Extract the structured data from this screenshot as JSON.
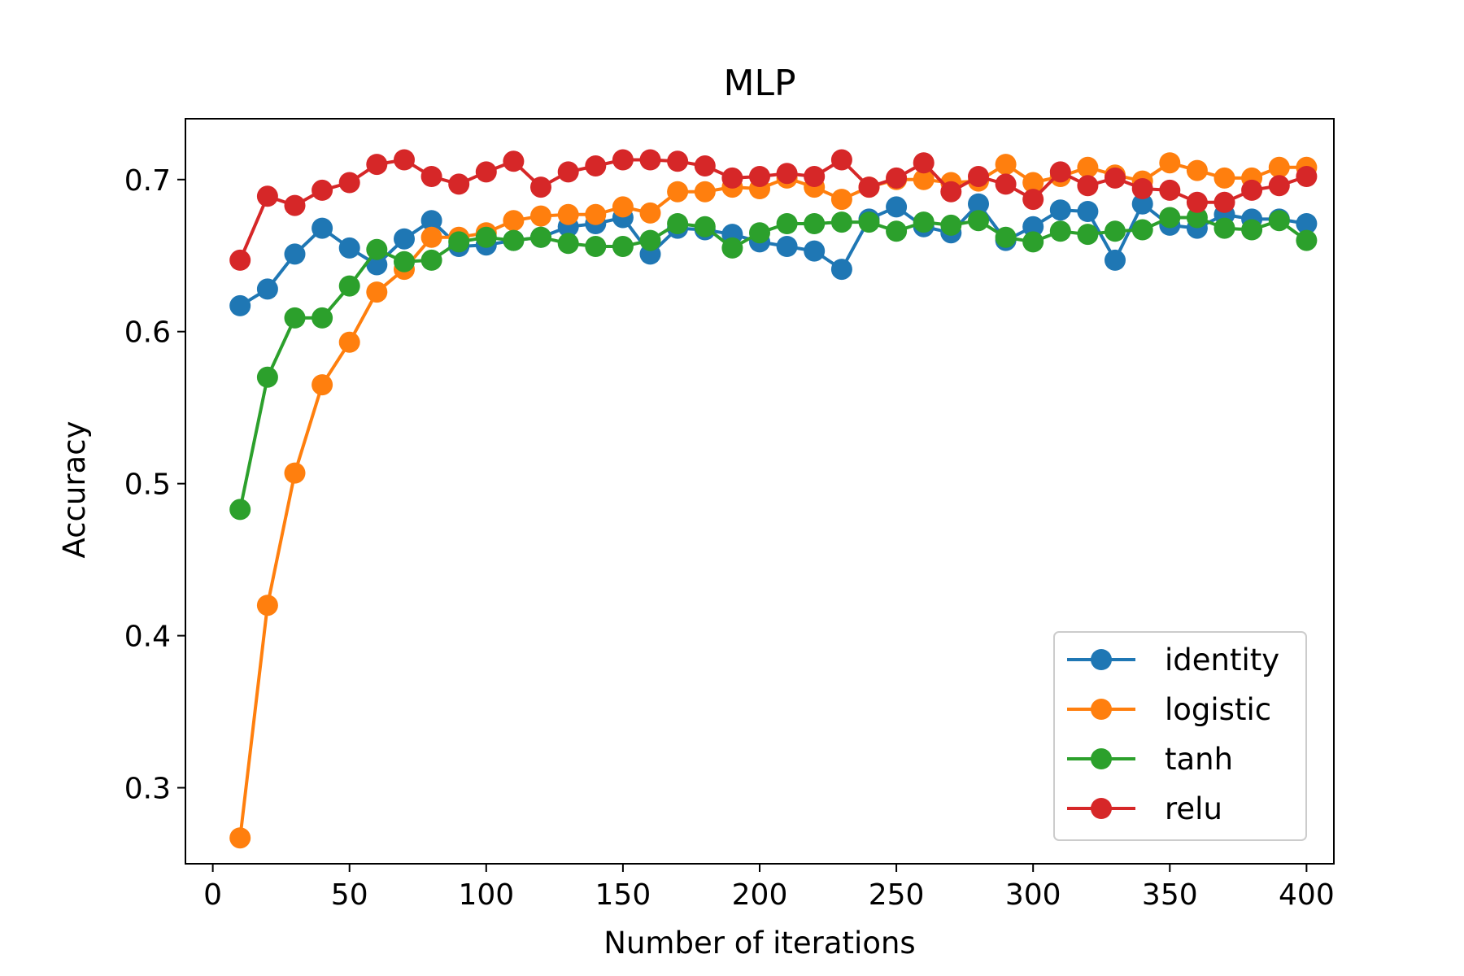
{
  "chart_data": {
    "type": "line",
    "title": "MLP",
    "xlabel": "Number of iterations",
    "ylabel": "Accuracy",
    "xlim": [
      -10,
      410
    ],
    "ylim": [
      0.25,
      0.74
    ],
    "xticks": [
      0,
      50,
      100,
      150,
      200,
      250,
      300,
      350,
      400
    ],
    "yticks": [
      0.3,
      0.4,
      0.5,
      0.6,
      0.7
    ],
    "ytick_labels": [
      "0.3",
      "0.4",
      "0.5",
      "0.6",
      "0.7"
    ],
    "grid": false,
    "legend_position": "lower-right",
    "x": [
      10,
      20,
      30,
      40,
      50,
      60,
      70,
      80,
      90,
      100,
      110,
      120,
      130,
      140,
      150,
      160,
      170,
      180,
      190,
      200,
      210,
      220,
      230,
      240,
      250,
      260,
      270,
      280,
      290,
      300,
      310,
      320,
      330,
      340,
      350,
      360,
      370,
      380,
      390,
      400
    ],
    "series": [
      {
        "name": "identity",
        "color": "#1f77b4",
        "values": [
          0.617,
          0.628,
          0.651,
          0.668,
          0.655,
          0.644,
          0.661,
          0.673,
          0.656,
          0.657,
          0.66,
          0.662,
          0.669,
          0.671,
          0.675,
          0.651,
          0.668,
          0.667,
          0.664,
          0.659,
          0.656,
          0.653,
          0.641,
          0.674,
          0.682,
          0.669,
          0.665,
          0.684,
          0.66,
          0.669,
          0.68,
          0.679,
          0.647,
          0.684,
          0.67,
          0.668,
          0.677,
          0.674,
          0.674,
          0.671
        ]
      },
      {
        "name": "logistic",
        "color": "#ff7f0e",
        "values": [
          0.267,
          0.42,
          0.507,
          0.565,
          0.593,
          0.626,
          0.641,
          0.662,
          0.662,
          0.665,
          0.673,
          0.676,
          0.677,
          0.677,
          0.682,
          0.678,
          0.692,
          0.692,
          0.695,
          0.694,
          0.701,
          0.695,
          0.687,
          0.695,
          0.7,
          0.7,
          0.698,
          0.699,
          0.71,
          0.698,
          0.702,
          0.708,
          0.703,
          0.699,
          0.711,
          0.706,
          0.701,
          0.701,
          0.708,
          0.708
        ]
      },
      {
        "name": "tanh",
        "color": "#2ca02c",
        "values": [
          0.483,
          0.57,
          0.609,
          0.609,
          0.63,
          0.654,
          0.646,
          0.647,
          0.659,
          0.662,
          0.66,
          0.662,
          0.658,
          0.656,
          0.656,
          0.66,
          0.671,
          0.669,
          0.655,
          0.665,
          0.671,
          0.671,
          0.672,
          0.672,
          0.666,
          0.672,
          0.67,
          0.673,
          0.662,
          0.659,
          0.666,
          0.664,
          0.666,
          0.667,
          0.675,
          0.675,
          0.668,
          0.667,
          0.673,
          0.66
        ]
      },
      {
        "name": "relu",
        "color": "#d62728",
        "values": [
          0.647,
          0.689,
          0.683,
          0.693,
          0.698,
          0.71,
          0.713,
          0.702,
          0.697,
          0.705,
          0.712,
          0.695,
          0.705,
          0.709,
          0.713,
          0.713,
          0.712,
          0.709,
          0.701,
          0.702,
          0.704,
          0.702,
          0.713,
          0.695,
          0.701,
          0.711,
          0.692,
          0.702,
          0.697,
          0.687,
          0.705,
          0.696,
          0.701,
          0.694,
          0.693,
          0.685,
          0.685,
          0.693,
          0.696,
          0.702
        ]
      }
    ]
  }
}
